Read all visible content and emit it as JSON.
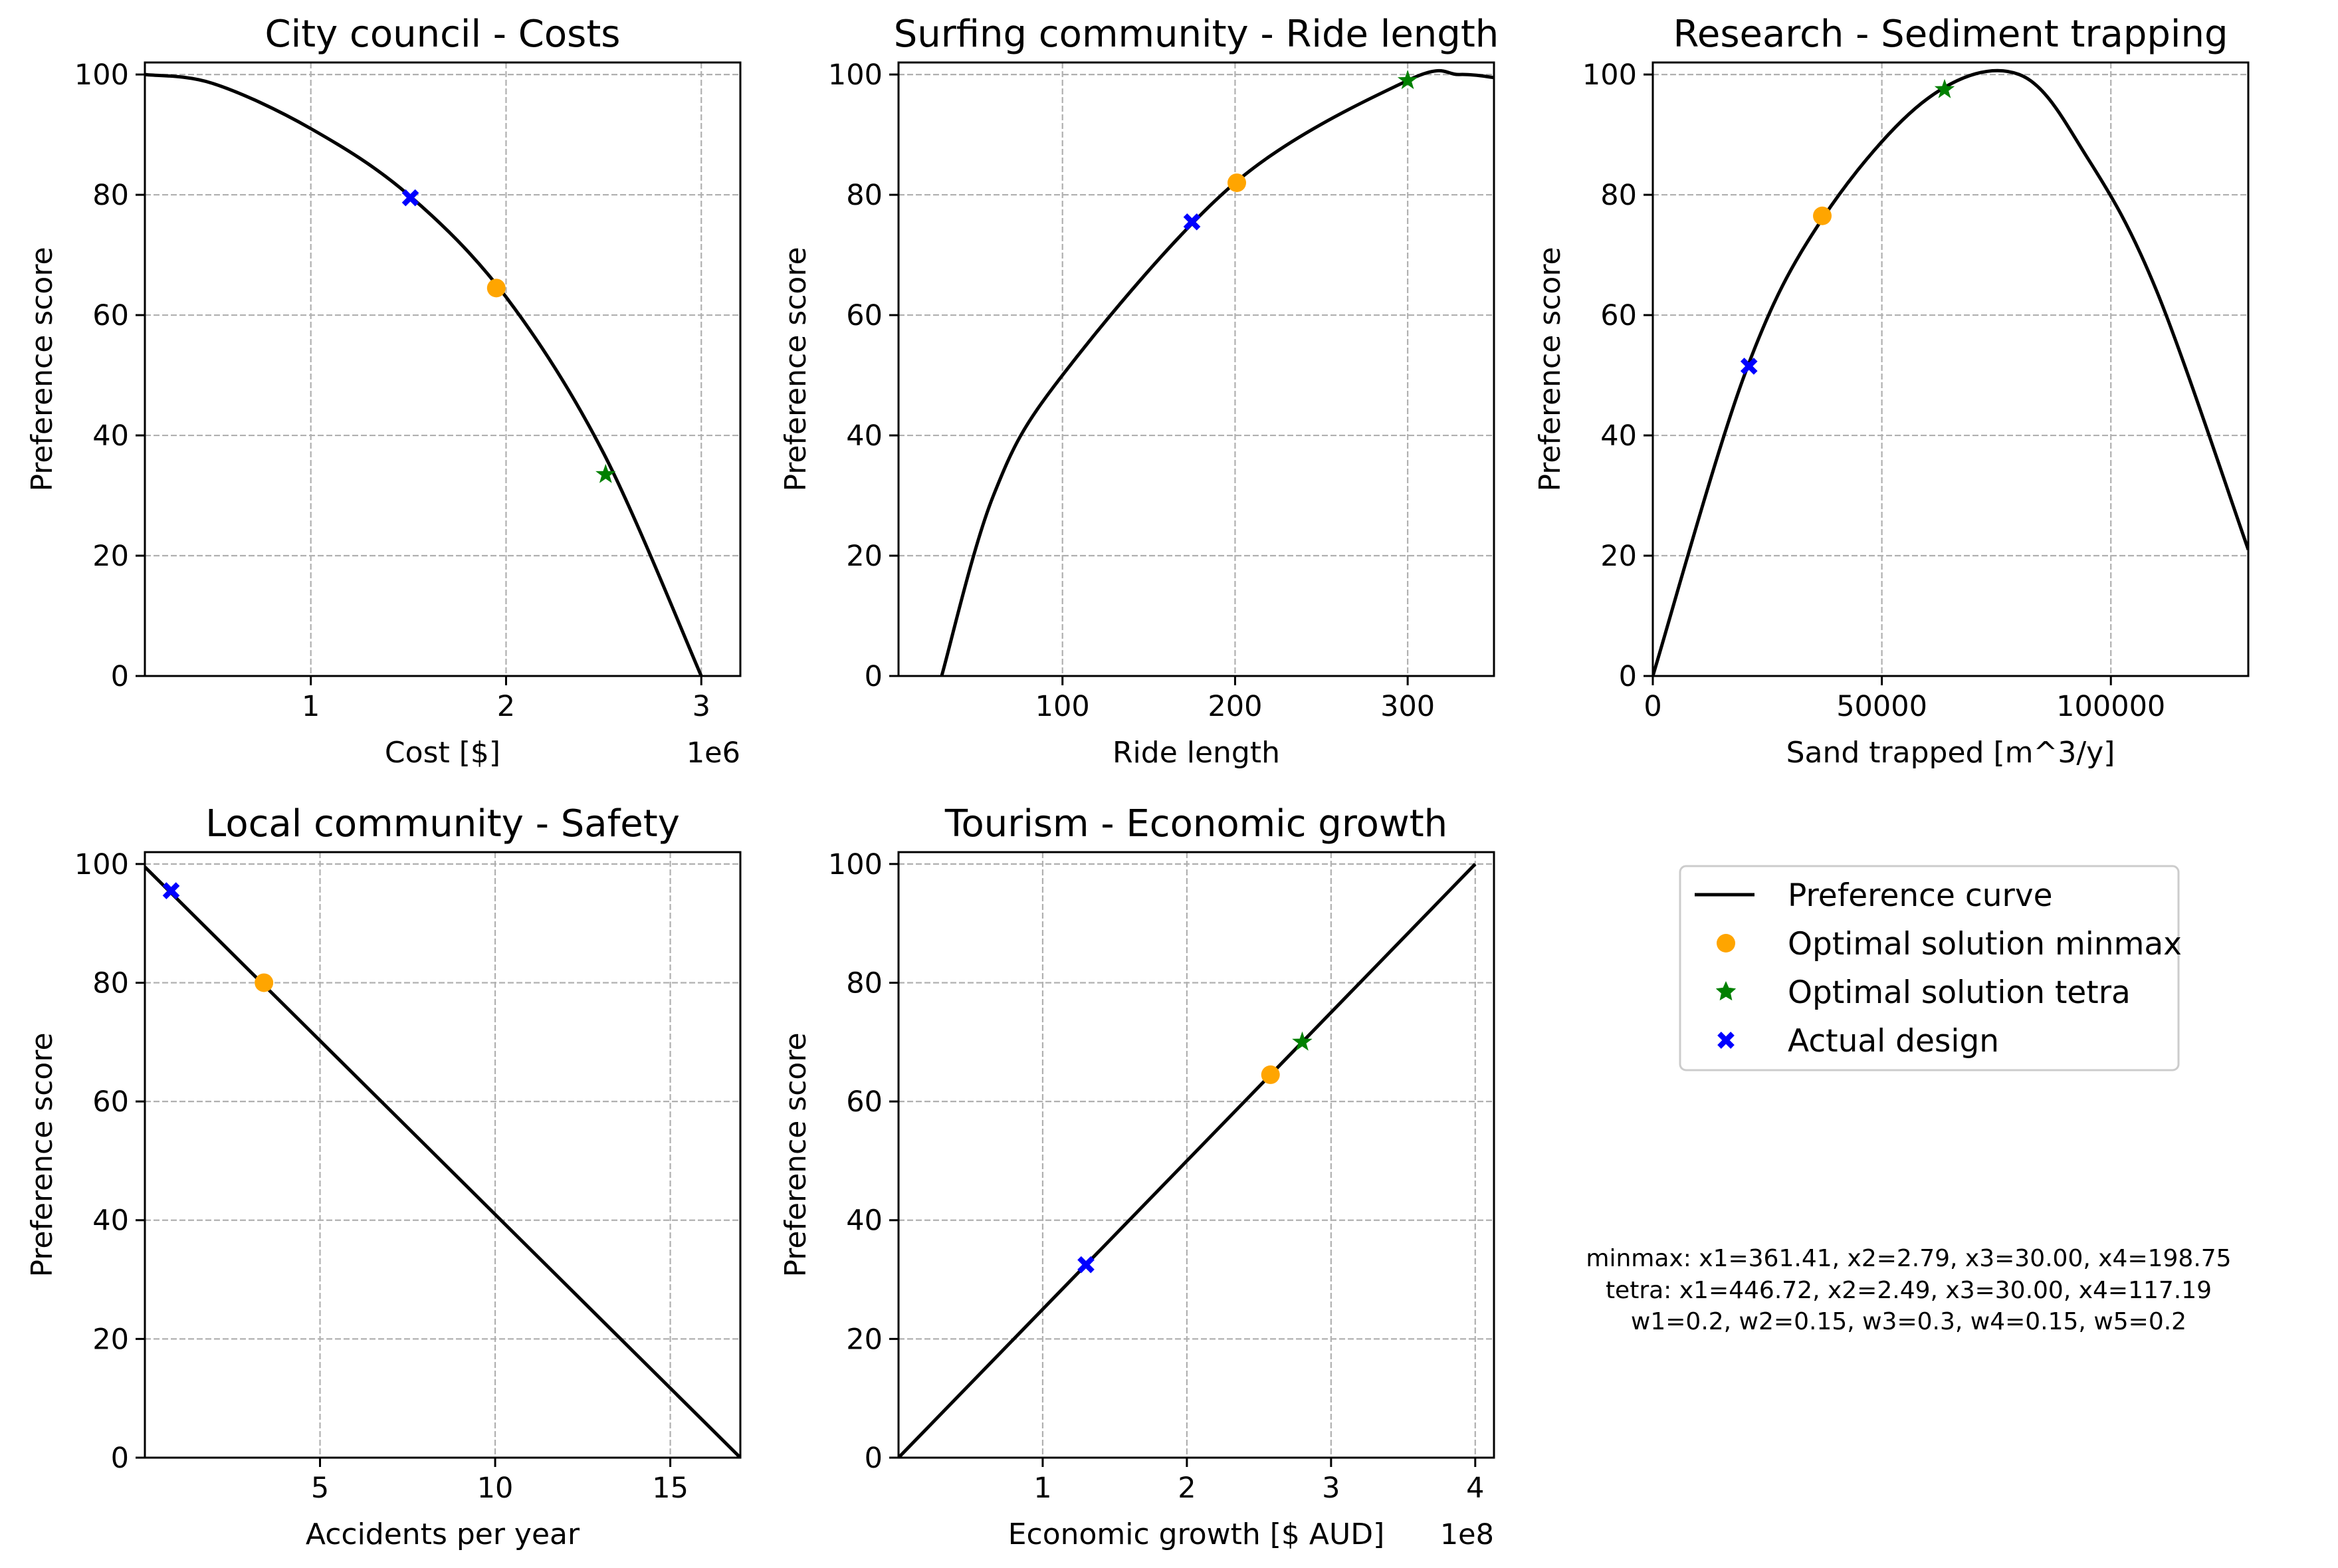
{
  "chart_data": [
    {
      "type": "line",
      "title": "City council - Costs",
      "xlabel": "Cost [$]",
      "ylabel": "Preference score",
      "x_offset_label": "1e6",
      "xlim": [
        150000,
        3200000
      ],
      "ylim": [
        0,
        102
      ],
      "xticks": [
        1000000,
        2000000,
        3000000
      ],
      "xtick_labels": [
        "1",
        "2",
        "3"
      ],
      "yticks": [
        0,
        20,
        40,
        60,
        80,
        100
      ],
      "ytick_labels": [
        "0",
        "20",
        "40",
        "60",
        "80",
        "100"
      ],
      "grid": true,
      "curve": {
        "name": "Preference curve",
        "x": [
          150000,
          500000,
          1000000,
          1500000,
          2000000,
          2500000,
          3000000
        ],
        "y": [
          100,
          98.5,
          91,
          80,
          63,
          37,
          0
        ]
      },
      "points": [
        {
          "series": "Optimal solution minmax",
          "x": 1950000,
          "y": 64.5
        },
        {
          "series": "Optimal solution tetra",
          "x": 2510000,
          "y": 33.5
        },
        {
          "series": "Actual design",
          "x": 1510000,
          "y": 79.5
        }
      ]
    },
    {
      "type": "line",
      "title": "Surfing community - Ride length",
      "xlabel": "Ride length",
      "ylabel": "Preference score",
      "xlim": [
        5,
        350
      ],
      "ylim": [
        0,
        102
      ],
      "xticks": [
        100,
        200,
        300
      ],
      "xtick_labels": [
        "100",
        "200",
        "300"
      ],
      "yticks": [
        0,
        20,
        40,
        60,
        80,
        100
      ],
      "ytick_labels": [
        "0",
        "20",
        "40",
        "60",
        "80",
        "100"
      ],
      "grid": true,
      "curve": {
        "name": "Preference curve",
        "x": [
          30,
          60,
          100,
          200,
          300,
          330,
          350
        ],
        "y": [
          0,
          30,
          50,
          82,
          99,
          100,
          99.5
        ]
      },
      "points": [
        {
          "series": "Optimal solution minmax",
          "x": 201,
          "y": 82
        },
        {
          "series": "Optimal solution tetra",
          "x": 300,
          "y": 99
        },
        {
          "series": "Actual design",
          "x": 175,
          "y": 75.5
        }
      ]
    },
    {
      "type": "line",
      "title": "Research - Sediment trapping",
      "xlabel": "Sand trapped [m^3/y]",
      "ylabel": "Preference score",
      "xlim": [
        0,
        130000
      ],
      "ylim": [
        0,
        102
      ],
      "xticks": [
        0,
        50000,
        100000
      ],
      "xtick_labels": [
        "0",
        "50000",
        "100000"
      ],
      "yticks": [
        0,
        20,
        40,
        60,
        80,
        100
      ],
      "ytick_labels": [
        "0",
        "20",
        "40",
        "60",
        "80",
        "100"
      ],
      "grid": true,
      "curve": {
        "name": "Preference curve",
        "x": [
          0,
          20000,
          37000,
          60000,
          80000,
          95000,
          110000,
          130000
        ],
        "y": [
          0,
          50,
          76,
          96,
          100,
          86,
          64,
          21
        ]
      },
      "points": [
        {
          "series": "Optimal solution minmax",
          "x": 37000,
          "y": 76.5
        },
        {
          "series": "Optimal solution tetra",
          "x": 63700,
          "y": 97.5
        },
        {
          "series": "Actual design",
          "x": 21000,
          "y": 51.5
        }
      ]
    },
    {
      "type": "line",
      "title": "Local community - Safety",
      "xlabel": "Accidents per year",
      "ylabel": "Preference score",
      "xlim": [
        0,
        17
      ],
      "ylim": [
        0,
        102
      ],
      "xticks": [
        5,
        10,
        15
      ],
      "xtick_labels": [
        "5",
        "10",
        "15"
      ],
      "yticks": [
        0,
        20,
        40,
        60,
        80,
        100
      ],
      "ytick_labels": [
        "0",
        "20",
        "40",
        "60",
        "80",
        "100"
      ],
      "grid": true,
      "curve": {
        "name": "Preference curve",
        "x": [
          0,
          17
        ],
        "y": [
          99.5,
          0
        ]
      },
      "points": [
        {
          "series": "Optimal solution minmax",
          "x": 3.4,
          "y": 80
        },
        {
          "series": "Actual design",
          "x": 0.75,
          "y": 95.5
        }
      ]
    },
    {
      "type": "line",
      "title": "Tourism - Economic growth",
      "xlabel": "Economic growth [$ AUD]",
      "ylabel": "Preference score",
      "x_offset_label": "1e8",
      "xlim": [
        0,
        413000000
      ],
      "ylim": [
        0,
        102
      ],
      "xticks": [
        100000000,
        200000000,
        300000000,
        400000000
      ],
      "xtick_labels": [
        "1",
        "2",
        "3",
        "4"
      ],
      "yticks": [
        0,
        20,
        40,
        60,
        80,
        100
      ],
      "ytick_labels": [
        "0",
        "20",
        "40",
        "60",
        "80",
        "100"
      ],
      "grid": true,
      "curve": {
        "name": "Preference curve",
        "x": [
          0,
          400000000
        ],
        "y": [
          0,
          100
        ]
      },
      "points": [
        {
          "series": "Optimal solution minmax",
          "x": 258000000,
          "y": 64.5
        },
        {
          "series": "Optimal solution tetra",
          "x": 280000000,
          "y": 70
        },
        {
          "series": "Actual design",
          "x": 130000000,
          "y": 32.5
        }
      ]
    }
  ],
  "legend": {
    "placement": "right",
    "entries": [
      {
        "label": "Preference curve",
        "marker": "line",
        "color": "#000000"
      },
      {
        "label": "Optimal solution minmax",
        "marker": "circle",
        "color": "#ffa500"
      },
      {
        "label": "Optimal solution tetra",
        "marker": "star",
        "color": "#008000"
      },
      {
        "label": "Actual design",
        "marker": "x",
        "color": "#0000ff"
      }
    ]
  },
  "note": {
    "lines": [
      "minmax: x1=361.41, x2=2.79, x3=30.00, x4=198.75",
      "tetra: x1=446.72, x2=2.49, x3=30.00, x4=117.19",
      "w1=0.2, w2=0.15, w3=0.3, w4=0.15, w5=0.2"
    ]
  },
  "colors": {
    "curve": "#000000",
    "minmax": "#ffa500",
    "tetra": "#008000",
    "actual": "#0000ff",
    "grid": "#b0b0b0"
  }
}
